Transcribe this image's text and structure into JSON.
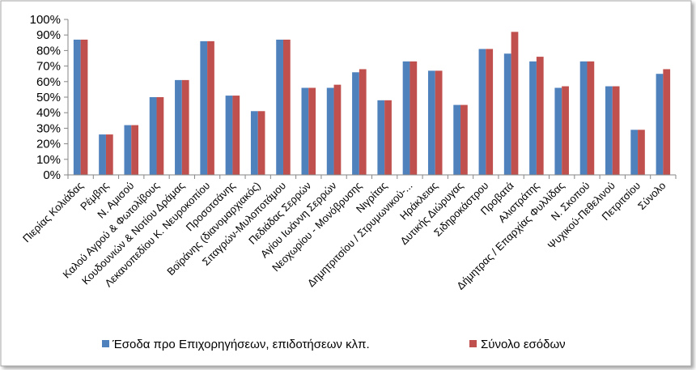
{
  "chart_data": {
    "type": "bar",
    "categories": [
      "Πιερίας Κολιάδας",
      "Ρέμβης",
      "Ν. Αμισού",
      "Καλού Αγρού & Φωτολίβους",
      "Κουδουνιών & Νοτίου Δράμας",
      "Λεκανοπεδίου Κ. Νευροκοπίου",
      "Προσοτσάνης",
      "Βοϊράνης (διανομαρχιακός)",
      "Σιταγρών-Μυλοποτάμου",
      "Πεδιάδας Σερρών",
      "Αγίου Ιωάννη Σερρών",
      "Νεοχωρίου - Μονόβρυσης",
      "Νιγρίτας",
      "Δημητριτσίου / Στρυμωνικού-...",
      "Ηράκλειας",
      "Δυτικής Διώρυγας",
      "Σιδηροκάστρου",
      "Προβατά",
      "Αλιστράτης",
      "Δήμητρας / Επαρχίας Φυλλίδας",
      "Ν. Σκοπού",
      "Ψυχικού-Πεθελινού",
      "Πετριτσίου",
      "Σύνολο"
    ],
    "series": [
      {
        "name": "Έσοδα προ Επιχορηγήσεων, επιδοτήσεων κλπ.",
        "color": "#4F81BD",
        "values": [
          0.87,
          0.26,
          0.32,
          0.5,
          0.61,
          0.86,
          0.51,
          0.41,
          0.87,
          0.56,
          0.56,
          0.66,
          0.48,
          0.73,
          0.67,
          0.45,
          0.81,
          0.78,
          0.73,
          0.56,
          0.73,
          0.57,
          0.29,
          0.65
        ]
      },
      {
        "name": "Σύνολο εσόδων",
        "color": "#C0504D",
        "values": [
          0.87,
          0.26,
          0.32,
          0.5,
          0.61,
          0.86,
          0.51,
          0.41,
          0.87,
          0.56,
          0.58,
          0.68,
          0.48,
          0.73,
          0.67,
          0.45,
          0.81,
          0.92,
          0.76,
          0.57,
          0.73,
          0.57,
          0.29,
          0.68
        ]
      }
    ],
    "yticks": [
      "0%",
      "10%",
      "20%",
      "30%",
      "40%",
      "50%",
      "60%",
      "70%",
      "80%",
      "90%",
      "100%"
    ],
    "ylim": [
      0,
      1
    ],
    "grid": false,
    "legend_position": "bottom",
    "title": "",
    "xlabel": "",
    "ylabel": ""
  }
}
